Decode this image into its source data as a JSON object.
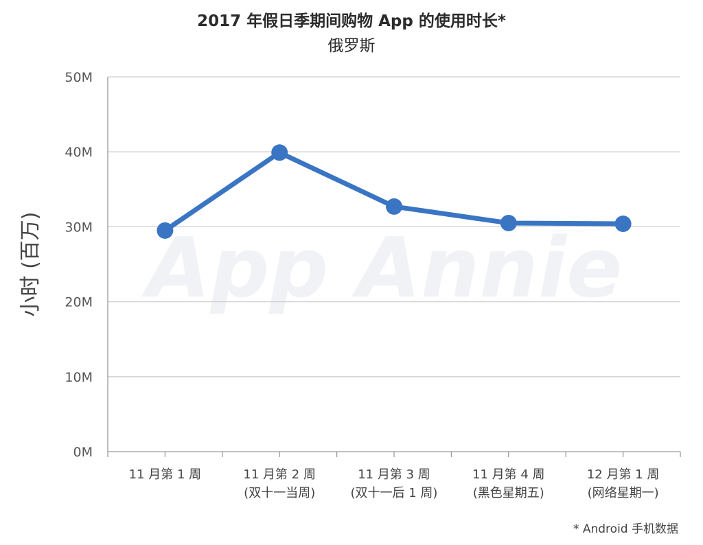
{
  "chart_data": {
    "type": "line",
    "title": "2017 年假日季期间购物 App 的使用时长*",
    "subtitle": "俄罗斯",
    "xlabel": "",
    "ylabel": "小时 (百万)",
    "categories": [
      [
        "11 月第 1 周"
      ],
      [
        "11 月第 2 周",
        "(双十一当周)"
      ],
      [
        "11 月第 3 周",
        "(双十一后 1 周)"
      ],
      [
        "11 月第 4 周",
        "(黑色星期五)"
      ],
      [
        "12 月第 1 周",
        "(网络星期一)"
      ]
    ],
    "series": [
      {
        "values": [
          29.5,
          39.9,
          32.7,
          30.5,
          30.4
        ]
      }
    ],
    "yticks": [
      "0M",
      "10M",
      "20M",
      "30M",
      "40M",
      "50M"
    ],
    "ylim": [
      0,
      50
    ],
    "grid": true,
    "line_color": "#3a75c4",
    "watermark": "App Annie",
    "footnote": "* Android 手机数据"
  }
}
